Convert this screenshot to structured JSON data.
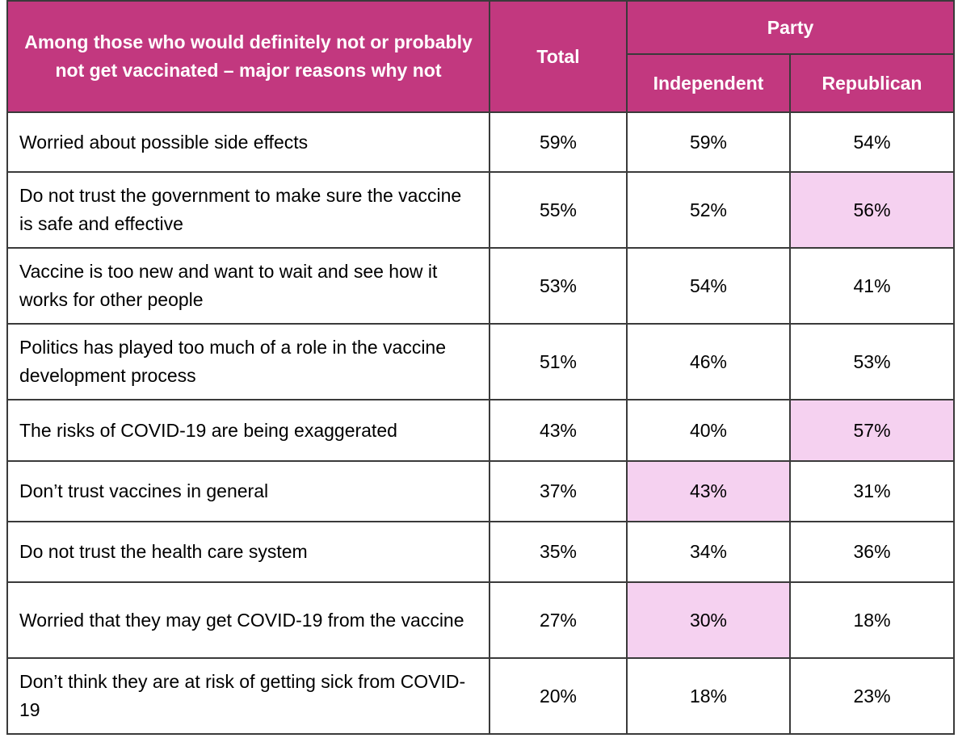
{
  "header": {
    "question": "Among those who would definitely not or probably not get vaccinated – major reasons why not",
    "total": "Total",
    "group": "Party",
    "columns": [
      "Independent",
      "Republican"
    ]
  },
  "colors": {
    "header_bg": "#c2387f",
    "header_text": "#ffffff",
    "highlight": "#f5d1f0",
    "border": "#3a3a3a"
  },
  "rows": [
    {
      "label": "Worried about possible side effects",
      "total": "59%",
      "independent": "59%",
      "republican": "54%",
      "highlight": []
    },
    {
      "label": "Do not trust the government to make sure the vaccine is safe and effective",
      "total": "55%",
      "independent": "52%",
      "republican": "56%",
      "highlight": [
        "republican"
      ]
    },
    {
      "label": "Vaccine is too new and want to wait and see how it works for other people",
      "total": "53%",
      "independent": "54%",
      "republican": "41%",
      "highlight": []
    },
    {
      "label": "Politics has played too much of a role in the vaccine development process",
      "total": "51%",
      "independent": "46%",
      "republican": "53%",
      "highlight": []
    },
    {
      "label": "The risks of COVID-19 are being exaggerated",
      "total": "43%",
      "independent": "40%",
      "republican": "57%",
      "highlight": [
        "republican"
      ]
    },
    {
      "label": "Don’t trust vaccines in general",
      "total": "37%",
      "independent": "43%",
      "republican": "31%",
      "highlight": [
        "independent"
      ]
    },
    {
      "label": "Do not trust the health care system",
      "total": "35%",
      "independent": "34%",
      "republican": "36%",
      "highlight": []
    },
    {
      "label": "Worried that they may get COVID-19 from the vaccine",
      "total": "27%",
      "independent": "30%",
      "republican": "18%",
      "highlight": [
        "independent"
      ]
    },
    {
      "label": "Don’t think they are at risk of getting sick from COVID-19",
      "total": "20%",
      "independent": "18%",
      "republican": "23%",
      "highlight": []
    }
  ]
}
